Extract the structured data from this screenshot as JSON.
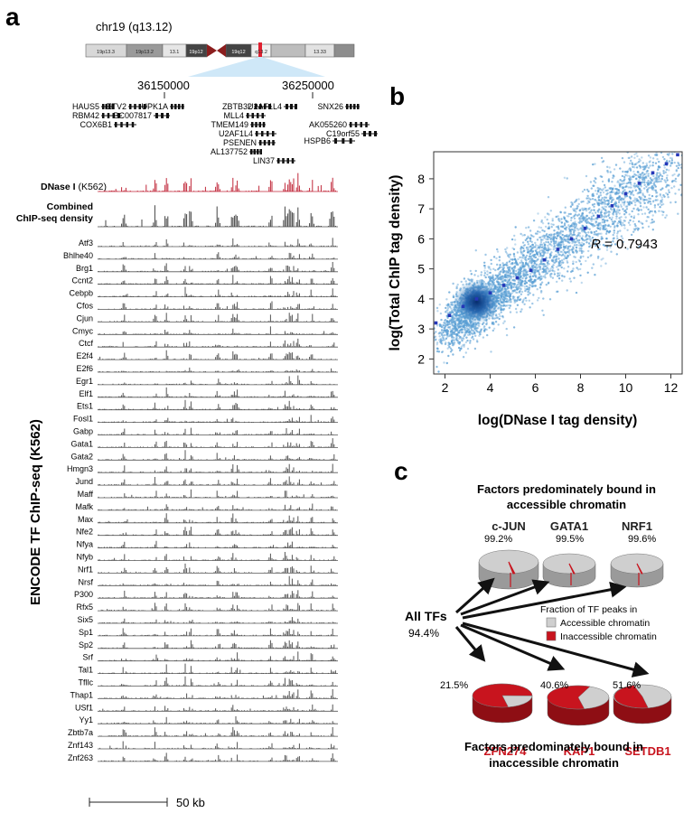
{
  "panels": {
    "a": "a",
    "b": "b",
    "c": "c"
  },
  "panel_a": {
    "chrom_label": "chr19 (q13.12)",
    "bands": [
      "19p13.3",
      "19p13.2",
      "13.1",
      "19p12",
      "19q12",
      "q13.2",
      "13.33"
    ],
    "coords": [
      "36150000",
      "36250000"
    ],
    "genes": [
      {
        "name": "HAUS5",
        "side": "right"
      },
      {
        "name": "ETV2",
        "side": "right"
      },
      {
        "name": "UPK1A",
        "side": "right"
      },
      {
        "name": "RBM42",
        "side": "right"
      },
      {
        "name": "BC007817",
        "side": "left"
      },
      {
        "name": "COX6B1",
        "side": "right"
      },
      {
        "name": "ZBTB32",
        "side": "right"
      },
      {
        "name": "U2AF1L4",
        "side": "left"
      },
      {
        "name": "MLL4",
        "side": "right"
      },
      {
        "name": "TMEM149",
        "side": "right"
      },
      {
        "name": "U2AF1L4",
        "side": "right"
      },
      {
        "name": "PSENEN",
        "side": "right"
      },
      {
        "name": "AL137752",
        "side": "right"
      },
      {
        "name": "LIN37",
        "side": "right"
      },
      {
        "name": "SNX26",
        "side": "right"
      },
      {
        "name": "AK055260",
        "side": "right"
      },
      {
        "name": "C19orf55",
        "side": "left"
      },
      {
        "name": "HSPB6",
        "side": "left"
      }
    ],
    "dnase_label": "DNase I",
    "dnase_cell": "(K562)",
    "combined_label_1": "Combined",
    "combined_label_2": "ChIP-seq density",
    "y_axis_label": "ENCODE TF ChIP-seq (K562)",
    "tracks": [
      "Atf3",
      "Bhlhe40",
      "Brg1",
      "Ccnt2",
      "Cebpb",
      "Cfos",
      "Cjun",
      "Cmyc",
      "Ctcf",
      "E2f4",
      "E2f6",
      "Egr1",
      "Elf1",
      "Ets1",
      "Fosl1",
      "Gabp",
      "Gata1",
      "Gata2",
      "Hmgn3",
      "Jund",
      "Maff",
      "Mafk",
      "Max",
      "Nfe2",
      "Nfya",
      "Nfyb",
      "Nrf1",
      "Nrsf",
      "P300",
      "Rfx5",
      "Six5",
      "Sp1",
      "Sp2",
      "Srf",
      "Tal1",
      "Tfllc",
      "Thap1",
      "USf1",
      "Yy1",
      "Zbtb7a",
      "Znf143",
      "Znf263"
    ],
    "scale_label": "50 kb",
    "colors": {
      "dnase": "#c0283a",
      "track": "#555555"
    }
  },
  "chart_data": [
    {
      "type": "scatter",
      "panel": "b",
      "xlabel": "log(DNase I tag density)",
      "ylabel": "log(Total ChIP tag density)",
      "xlim": [
        1.5,
        12.5
      ],
      "ylim": [
        1.5,
        8.9
      ],
      "xticks": [
        2,
        4,
        6,
        8,
        10,
        12
      ],
      "yticks": [
        2,
        3,
        4,
        5,
        6,
        7,
        8
      ],
      "annotation_r_symbol": "R",
      "annotation_r_value": "= 0.7943",
      "r_value": 0.7943,
      "density_center": {
        "x": 3.4,
        "y": 3.9
      },
      "binned_means": {
        "x": [
          1.6,
          2.2,
          2.8,
          3.4,
          4.0,
          4.6,
          5.2,
          5.8,
          6.4,
          7.0,
          7.6,
          8.2,
          8.8,
          9.4,
          10.0,
          10.6,
          11.2,
          11.8,
          12.3
        ],
        "y": [
          3.2,
          3.45,
          3.75,
          4.0,
          4.2,
          4.45,
          4.7,
          4.95,
          5.3,
          5.65,
          6.0,
          6.35,
          6.75,
          7.1,
          7.5,
          7.85,
          8.2,
          8.5,
          8.8
        ]
      },
      "colors": {
        "points": "#5a9fd4",
        "dense": "#0b3f8a",
        "mean": "#2537b8"
      }
    },
    {
      "type": "pie",
      "panel": "c",
      "top_title_1": "Factors predominately bound in",
      "top_title_2": "accessible chromatin",
      "bottom_title_1": "Factors predominately bound in",
      "bottom_title_2": "inaccessible chromatin",
      "legend_title_1": "Fraction of TF peaks in",
      "legend_title_2": "",
      "legend": [
        "Accessible chromatin",
        "Inaccessible chromatin"
      ],
      "source_label": "All TFs",
      "source_value": "94.4%",
      "series": [
        {
          "name": "c-JUN",
          "label": "99.2%",
          "accessible": 99.2,
          "group": "accessible"
        },
        {
          "name": "GATA1",
          "label": "99.5%",
          "accessible": 99.5,
          "group": "accessible"
        },
        {
          "name": "NRF1",
          "label": "99.6%",
          "accessible": 99.6,
          "group": "accessible"
        },
        {
          "name": "ZFN274",
          "label": "21.5%",
          "accessible": 21.5,
          "group": "inaccessible"
        },
        {
          "name": "KAP1",
          "label": "40.6%",
          "accessible": 40.6,
          "group": "inaccessible"
        },
        {
          "name": "SETDB1",
          "label": "51.6%",
          "accessible": 51.6,
          "group": "inaccessible"
        }
      ],
      "colors": {
        "accessible": "#cfcfcf",
        "inaccessible": "#c8141e",
        "bottom_names": "#c8141e"
      }
    }
  ]
}
